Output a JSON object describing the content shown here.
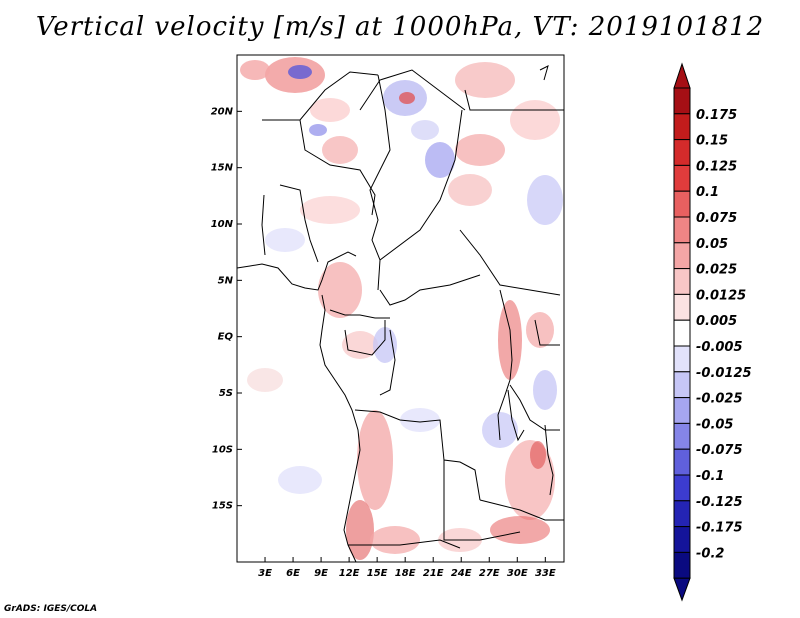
{
  "title": "Vertical velocity [m/s] at 1000hPa, VT: 2019101812",
  "footer": "GrADS: IGES/COLA",
  "map": {
    "lon_range": [
      0,
      35
    ],
    "lat_range": [
      -20,
      25
    ],
    "lat_labels": [
      {
        "lat": 20,
        "text": "20N"
      },
      {
        "lat": 15,
        "text": "15N"
      },
      {
        "lat": 10,
        "text": "10N"
      },
      {
        "lat": 5,
        "text": "5N"
      },
      {
        "lat": 0,
        "text": "EQ"
      },
      {
        "lat": -5,
        "text": "5S"
      },
      {
        "lat": -10,
        "text": "10S"
      },
      {
        "lat": -15,
        "text": "15S"
      }
    ],
    "lon_labels": [
      {
        "lon": 3,
        "text": "3E"
      },
      {
        "lon": 6,
        "text": "6E"
      },
      {
        "lon": 9,
        "text": "9E"
      },
      {
        "lon": 12,
        "text": "12E"
      },
      {
        "lon": 15,
        "text": "15E"
      },
      {
        "lon": 18,
        "text": "18E"
      },
      {
        "lon": 21,
        "text": "21E"
      },
      {
        "lon": 24,
        "text": "24E"
      },
      {
        "lon": 27,
        "text": "27E"
      },
      {
        "lon": 30,
        "text": "30E"
      },
      {
        "lon": 33,
        "text": "33E"
      }
    ]
  },
  "colorbar": {
    "labels": [
      "0.175",
      "0.15",
      "0.125",
      "0.1",
      "0.075",
      "0.05",
      "0.025",
      "0.0125",
      "0.005",
      "-0.005",
      "-0.0125",
      "-0.025",
      "-0.05",
      "-0.075",
      "-0.1",
      "-0.125",
      "-0.175",
      "-0.2"
    ],
    "colors": [
      "#a50f15",
      "#c21c1c",
      "#d42b2b",
      "#e03c3c",
      "#e86060",
      "#ef8585",
      "#f4a6a6",
      "#f8c6c6",
      "#fbe2e2",
      "#ffffff",
      "#e2e2fb",
      "#c6c6f6",
      "#a6a6f0",
      "#8585e8",
      "#6060dc",
      "#3c3cd0",
      "#2424b4",
      "#14149a",
      "#0a0a80"
    ],
    "top_color": "#a50f15",
    "bottom_color": "#0a0a80"
  }
}
